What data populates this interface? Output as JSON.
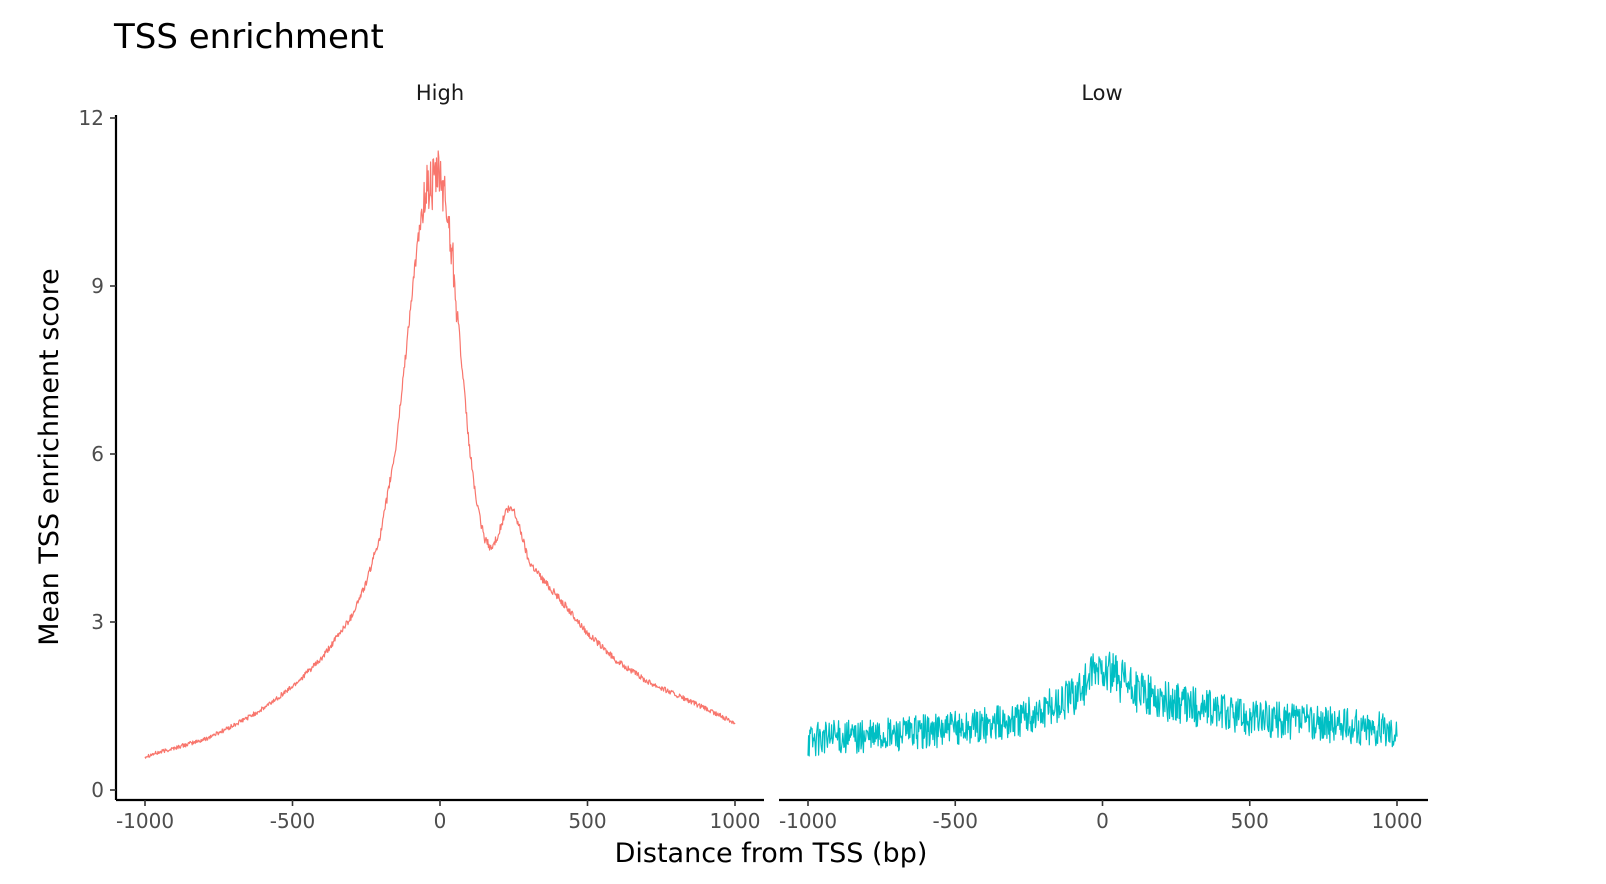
{
  "chart_data": {
    "type": "line",
    "title": "TSS enrichment",
    "xlabel": "Distance from TSS (bp)",
    "ylabel": "Mean TSS enrichment score",
    "xlim": [
      -1000,
      1000
    ],
    "ylim": [
      0,
      12
    ],
    "x_ticks": [
      "-1000",
      "-500",
      "0",
      "500",
      "1000"
    ],
    "y_ticks": [
      "0",
      "3",
      "6",
      "9",
      "12"
    ],
    "grid": false,
    "legend": "none",
    "facets": [
      {
        "label": "High",
        "color": "#F8766D",
        "x": [
          -1000,
          -900,
          -800,
          -700,
          -600,
          -500,
          -400,
          -300,
          -250,
          -200,
          -150,
          -100,
          -75,
          -50,
          -25,
          0,
          25,
          50,
          75,
          100,
          125,
          150,
          175,
          200,
          225,
          250,
          275,
          300,
          350,
          400,
          500,
          600,
          700,
          800,
          900,
          1000
        ],
        "y": [
          0.6,
          0.75,
          0.9,
          1.15,
          1.45,
          1.85,
          2.35,
          3.1,
          3.7,
          4.6,
          6.1,
          8.6,
          9.8,
          10.7,
          10.8,
          11.0,
          10.3,
          9.2,
          7.5,
          6.1,
          5.1,
          4.5,
          4.3,
          4.6,
          5.0,
          5.0,
          4.6,
          4.1,
          3.75,
          3.45,
          2.8,
          2.3,
          1.95,
          1.7,
          1.45,
          1.2
        ]
      },
      {
        "label": "Low",
        "color": "#00BFC4",
        "x": [
          -1000,
          -900,
          -800,
          -700,
          -600,
          -500,
          -400,
          -300,
          -200,
          -100,
          -50,
          0,
          50,
          100,
          150,
          200,
          300,
          400,
          500,
          600,
          700,
          800,
          900,
          1000
        ],
        "y": [
          0.9,
          0.95,
          0.95,
          1.0,
          1.05,
          1.1,
          1.15,
          1.25,
          1.4,
          1.7,
          1.95,
          2.2,
          2.0,
          1.8,
          1.7,
          1.6,
          1.5,
          1.4,
          1.3,
          1.25,
          1.2,
          1.15,
          1.1,
          1.05
        ]
      }
    ]
  }
}
